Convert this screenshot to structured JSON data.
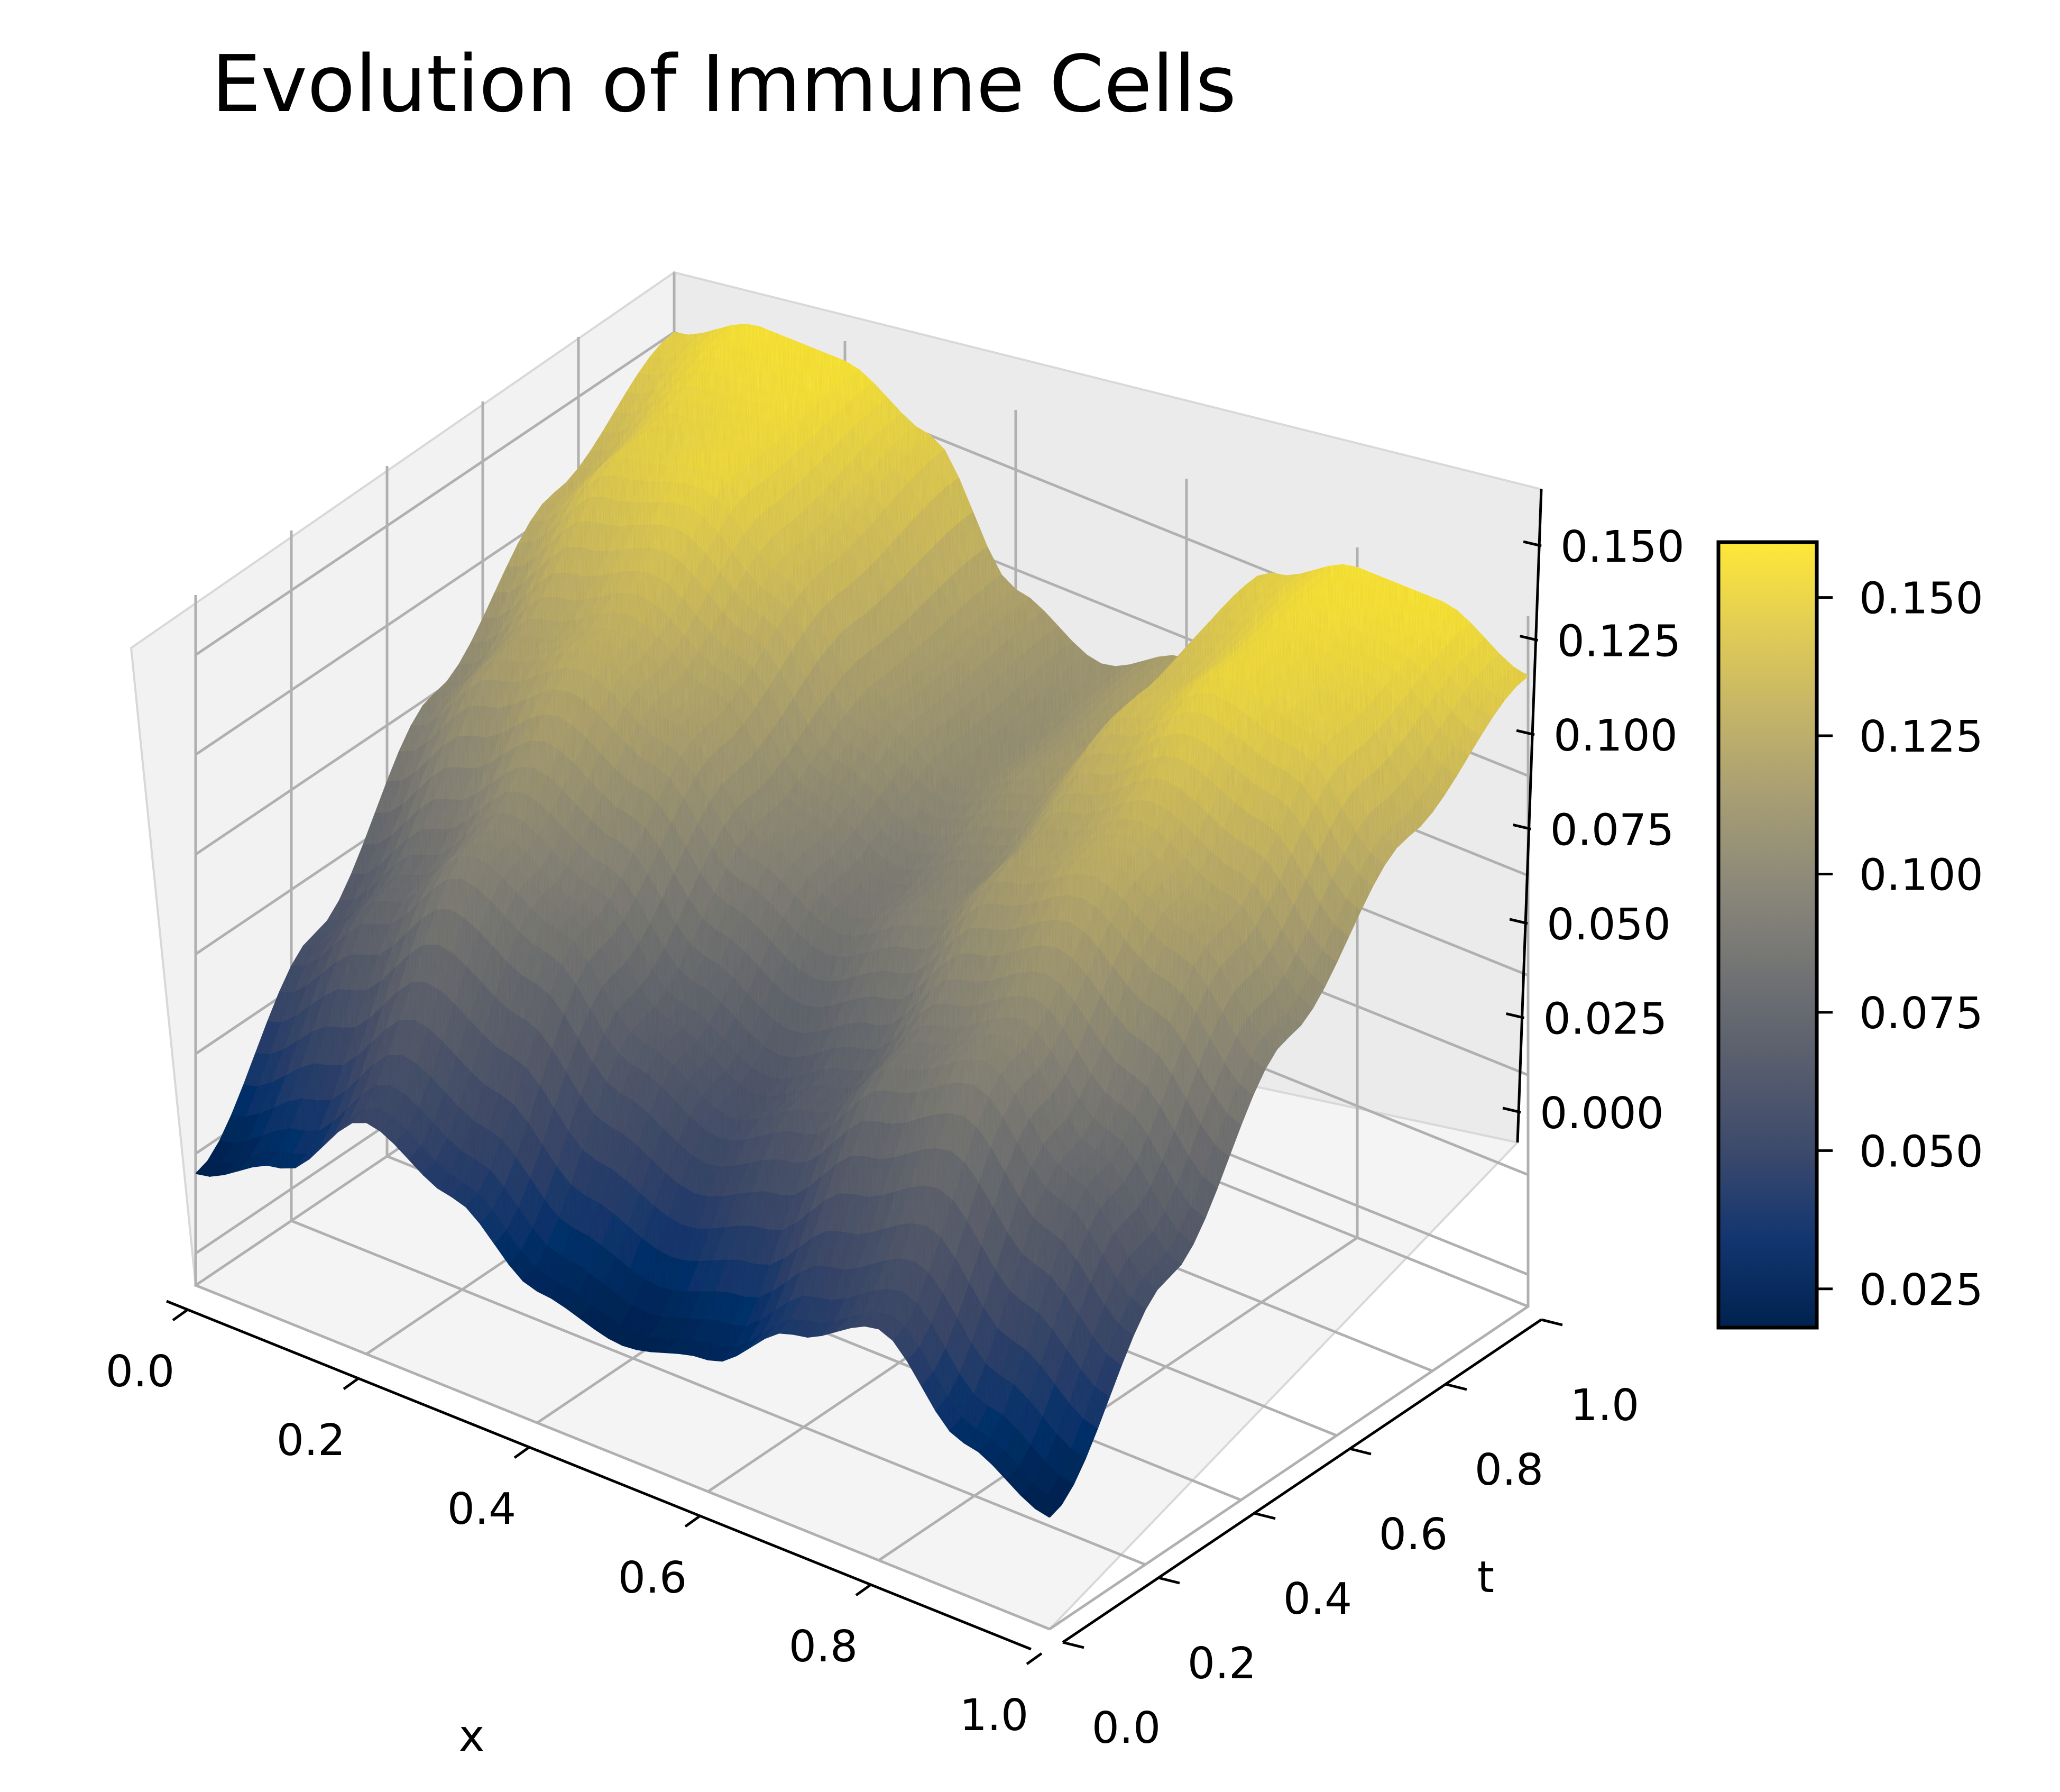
{
  "chart_data": {
    "type": "surface",
    "title": "Evolution of Immune Cells",
    "xlabel": "x",
    "ylabel": "t",
    "zlabel": "",
    "colormap": "cividis",
    "colormap_stops": [
      "#00224e",
      "#123570",
      "#3b496c",
      "#575d6d",
      "#707173",
      "#8a8779",
      "#a59c74",
      "#c3b369",
      "#e1cc55",
      "#fee838"
    ],
    "xlim": [
      0,
      1
    ],
    "ylim": [
      0,
      1
    ],
    "zlim": [
      -0.008,
      0.165
    ],
    "x_ticks": [
      0.0,
      0.2,
      0.4,
      0.6,
      0.8,
      1.0
    ],
    "x_tick_labels": [
      "0.0",
      "0.2",
      "0.4",
      "0.6",
      "0.8",
      "1.0"
    ],
    "y_ticks": [
      0.0,
      0.2,
      0.4,
      0.6,
      0.8,
      1.0
    ],
    "y_tick_labels": [
      "0.0",
      "0.2",
      "0.4",
      "0.6",
      "0.8",
      "1.0"
    ],
    "z_ticks": [
      0.0,
      0.025,
      0.05,
      0.075,
      0.1,
      0.125,
      0.15
    ],
    "z_tick_labels": [
      "0.000",
      "0.025",
      "0.050",
      "0.075",
      "0.100",
      "0.125",
      "0.150"
    ],
    "colorbar": {
      "vmin": 0.018,
      "vmax": 0.16,
      "ticks": [
        0.025,
        0.05,
        0.075,
        0.1,
        0.125,
        0.15
      ],
      "tick_labels": [
        "0.025",
        "0.050",
        "0.075",
        "0.100",
        "0.125",
        "0.150"
      ]
    },
    "surface_profile": {
      "description_of_data": "u(x,t) sampled on x grid; two peaks moving with t",
      "x": [
        0.0,
        0.1,
        0.2,
        0.3,
        0.4,
        0.5,
        0.6,
        0.7,
        0.8,
        0.9,
        1.0
      ],
      "t": [
        0.0,
        0.25,
        0.5,
        0.75,
        1.0
      ],
      "u": [
        [
          0.02,
          0.03,
          0.05,
          0.04,
          0.025,
          0.02,
          0.025,
          0.04,
          0.05,
          0.03,
          0.02
        ],
        [
          0.06,
          0.08,
          0.1,
          0.09,
          0.07,
          0.06,
          0.07,
          0.09,
          0.1,
          0.08,
          0.06
        ],
        [
          0.1,
          0.12,
          0.13,
          0.12,
          0.1,
          0.09,
          0.1,
          0.12,
          0.13,
          0.12,
          0.1
        ],
        [
          0.13,
          0.15,
          0.155,
          0.14,
          0.115,
          0.105,
          0.115,
          0.14,
          0.155,
          0.15,
          0.13
        ],
        [
          0.15,
          0.16,
          0.16,
          0.15,
          0.12,
          0.11,
          0.12,
          0.15,
          0.16,
          0.16,
          0.15
        ]
      ]
    }
  }
}
